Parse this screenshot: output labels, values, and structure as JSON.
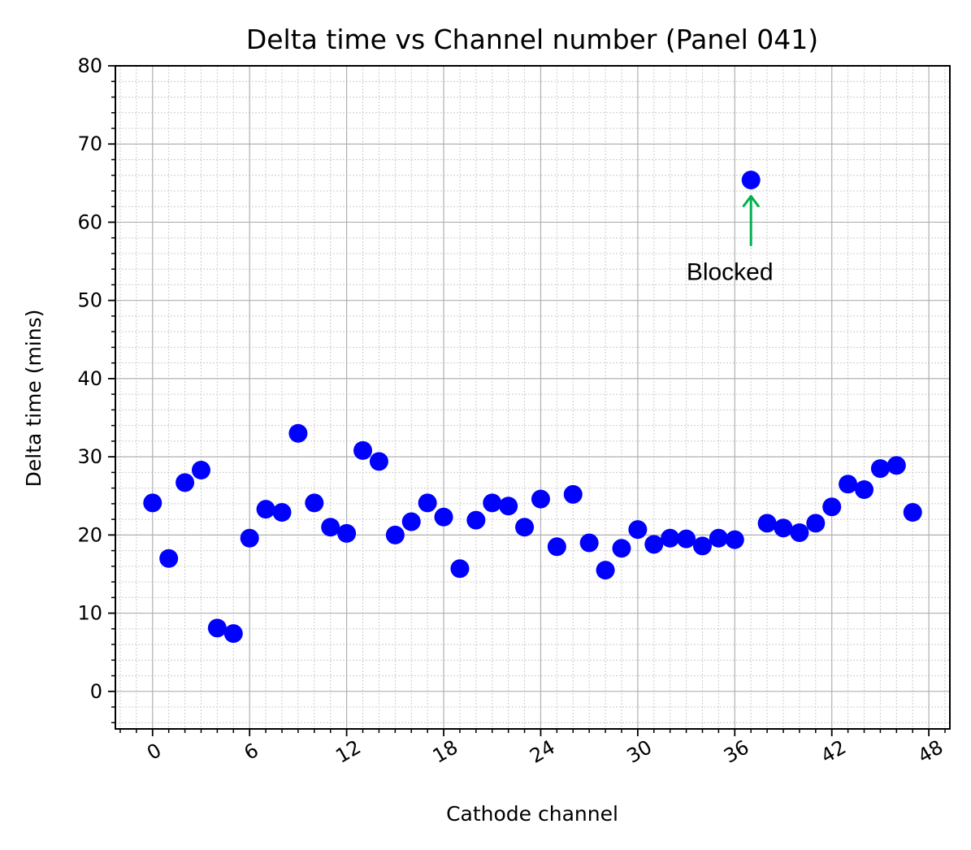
{
  "chart_data": {
    "type": "scatter",
    "title": "Delta time vs Channel number (Panel 041)",
    "xlabel": "Cathode channel",
    "ylabel": "Delta time (mins)",
    "xlim": [
      -2.3,
      49.3
    ],
    "ylim": [
      -4.8,
      80
    ],
    "xticks": [
      0,
      6,
      12,
      18,
      24,
      30,
      36,
      42,
      48
    ],
    "xtick_labels": [
      "0",
      "6",
      "12",
      "18",
      "24",
      "30",
      "36",
      "42",
      "48"
    ],
    "yticks": [
      0,
      10,
      20,
      30,
      40,
      50,
      60,
      70,
      80
    ],
    "ytick_labels": [
      "0",
      "10",
      "20",
      "30",
      "40",
      "50",
      "60",
      "70",
      "80"
    ],
    "x_tick_rotation_deg": 30,
    "grid": "major and minor",
    "marker_color": "#0000ff",
    "x": [
      0,
      1,
      2,
      3,
      4,
      5,
      6,
      7,
      8,
      9,
      10,
      11,
      12,
      13,
      14,
      15,
      16,
      17,
      18,
      19,
      20,
      21,
      22,
      23,
      24,
      25,
      26,
      27,
      28,
      29,
      30,
      31,
      32,
      33,
      34,
      35,
      36,
      37,
      38,
      39,
      40,
      41,
      42,
      43,
      44,
      45,
      46,
      47
    ],
    "y": [
      24.1,
      17.0,
      26.7,
      28.3,
      8.1,
      7.4,
      19.6,
      23.3,
      22.9,
      33.0,
      24.1,
      21.0,
      20.2,
      30.8,
      29.4,
      20.0,
      21.7,
      24.1,
      22.3,
      15.7,
      21.9,
      24.1,
      23.7,
      21.0,
      24.6,
      18.5,
      25.2,
      19.0,
      15.5,
      18.3,
      20.7,
      18.8,
      19.6,
      19.5,
      18.6,
      19.6,
      19.4,
      65.4,
      21.5,
      20.9,
      20.3,
      21.5,
      23.6,
      26.5,
      25.8,
      28.5,
      28.9,
      22.9
    ],
    "annotation": {
      "text": "Blocked",
      "x": 37,
      "y": 65.4,
      "arrow_color": "#00b050"
    }
  }
}
